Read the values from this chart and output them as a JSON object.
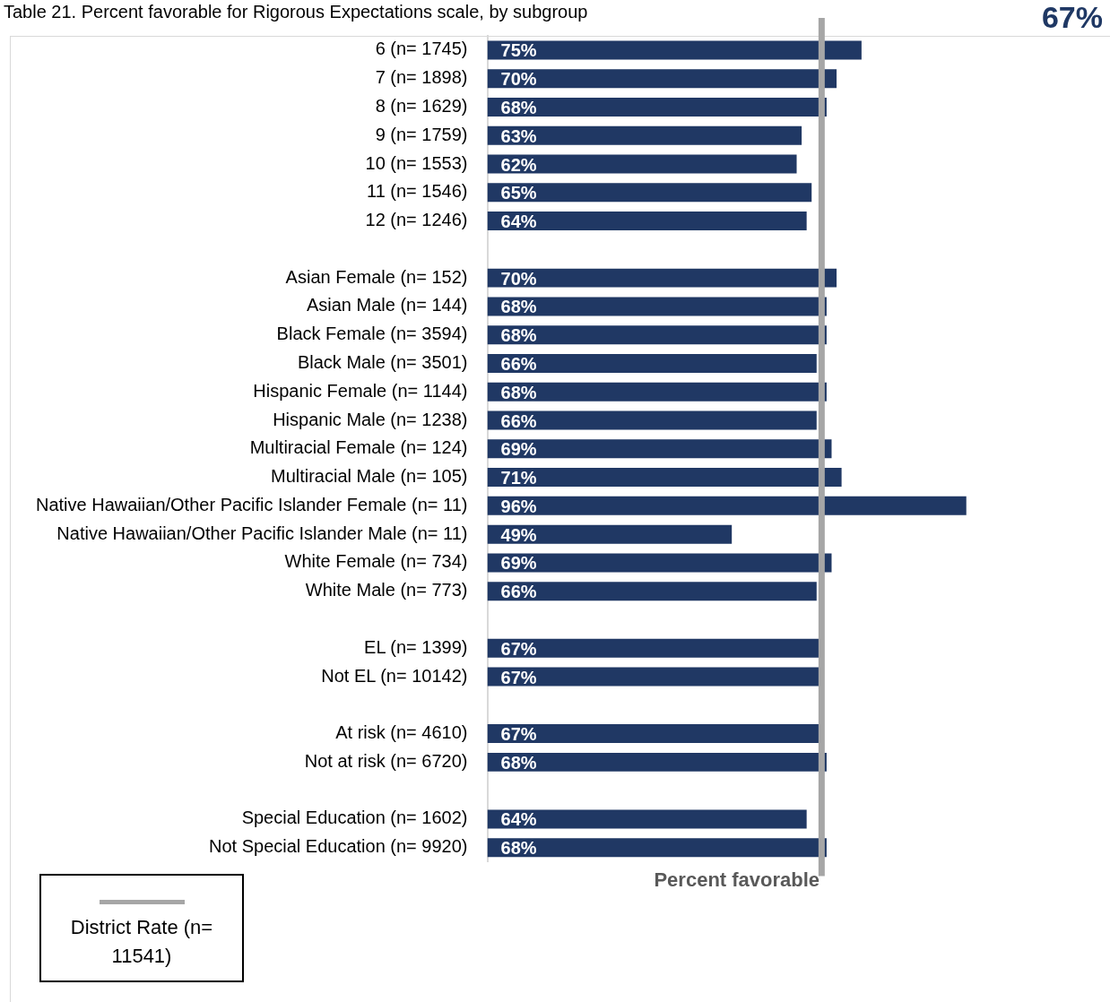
{
  "chart_data": {
    "type": "bar",
    "orientation": "horizontal",
    "title": "Table 21. Percent favorable for Rigorous Expectations scale, by subgroup",
    "xlabel": "Percent favorable",
    "categories": [
      "6 (n= 1745)",
      "7 (n= 1898)",
      "8 (n= 1629)",
      "9 (n= 1759)",
      "10 (n= 1553)",
      "11 (n= 1546)",
      "12 (n= 1246)",
      null,
      "Asian Female (n= 152)",
      "Asian Male (n= 144)",
      "Black Female (n= 3594)",
      "Black Male (n= 3501)",
      "Hispanic Female (n= 1144)",
      "Hispanic Male (n= 1238)",
      "Multiracial Female (n= 124)",
      "Multiracial Male (n= 105)",
      "Native Hawaiian/Other Pacific Islander Female (n= 11)",
      "Native Hawaiian/Other Pacific Islander Male (n= 11)",
      "White Female (n= 734)",
      "White Male (n= 773)",
      null,
      "EL (n= 1399)",
      "Not EL (n= 10142)",
      null,
      "At risk (n= 4610)",
      "Not at risk (n= 6720)",
      null,
      "Special Education (n= 1602)",
      "Not Special Education (n= 9920)"
    ],
    "values": [
      75,
      70,
      68,
      63,
      62,
      65,
      64,
      null,
      70,
      68,
      68,
      66,
      68,
      66,
      69,
      71,
      96,
      49,
      69,
      66,
      null,
      67,
      67,
      null,
      67,
      68,
      null,
      64,
      68
    ],
    "color": "#203864",
    "value_labels": [
      "75%",
      "70%",
      "68%",
      "63%",
      "62%",
      "65%",
      "64%",
      null,
      "70%",
      "68%",
      "68%",
      "66%",
      "68%",
      "66%",
      "69%",
      "71%",
      "96%",
      "49%",
      "69%",
      "66%",
      null,
      "67%",
      "67%",
      null,
      "67%",
      "68%",
      null,
      "64%",
      "68%"
    ],
    "tick_labels": "y",
    "grid": false,
    "legend": false,
    "legend_title": "District Rate (n= 11541)",
    "ref_lines": [
      {
        "axis": "x",
        "value": 67,
        "color": "#a6a6a6"
      }
    ],
    "annotations": [
      "67%"
    ]
  }
}
